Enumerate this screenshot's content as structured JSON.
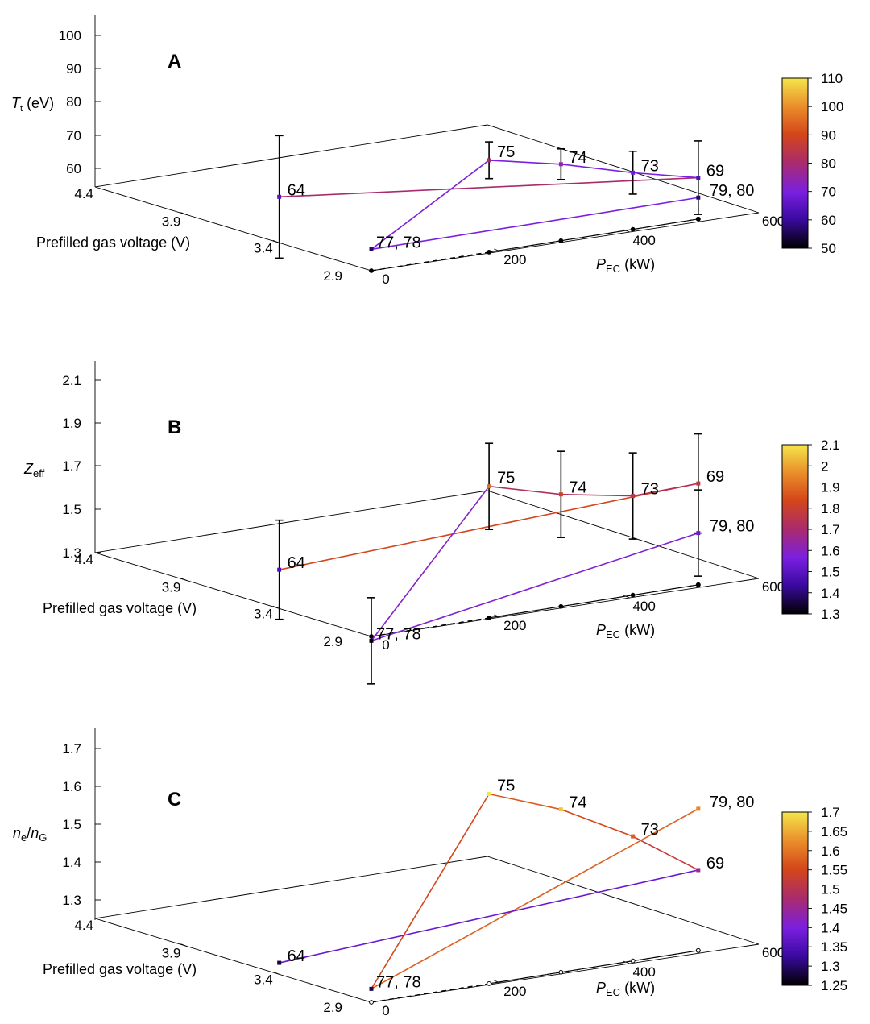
{
  "colormap": {
    "name": "gnuplot-like",
    "stops": [
      "#000000",
      "#3a0aa0",
      "#7a1fe0",
      "#a92b6e",
      "#d4461a",
      "#e98c2a",
      "#f5e54a"
    ]
  },
  "chart_data": [
    {
      "type": "line-3d",
      "panel_label": "A",
      "zlabel": "T_t (eV)",
      "xlabel": "P_EC (kW)",
      "ylabel": "Prefilled gas voltage (V)",
      "z_ticks": [
        "60",
        "70",
        "80",
        "90",
        "100"
      ],
      "y_ticks": [
        "4.4",
        "3.9",
        "3.4",
        "2.9"
      ],
      "x_ticks": [
        "0",
        "200",
        "400",
        "600"
      ],
      "zlim": [
        50,
        100
      ],
      "colorbar_ticks": [
        "50",
        "60",
        "70",
        "80",
        "90",
        "100",
        "110"
      ],
      "colorbar_range": [
        50,
        110
      ],
      "points": [
        {
          "label": "64",
          "x": 0,
          "y": 3.4,
          "z": 65,
          "err": 20
        },
        {
          "label": "75",
          "x": 180,
          "y": 2.9,
          "z": 80,
          "err": 6
        },
        {
          "label": "74",
          "x": 290,
          "y": 2.9,
          "z": 75,
          "err": 5
        },
        {
          "label": "73",
          "x": 400,
          "y": 2.9,
          "z": 68.5,
          "err": 7
        },
        {
          "label": "69",
          "x": 500,
          "y": 2.9,
          "z": 63.5,
          "err": 12
        },
        {
          "label": "77, 78",
          "x": 0,
          "y": 2.9,
          "z": 57
        },
        {
          "label": "79, 80",
          "x": 500,
          "y": 2.9,
          "z": 57
        }
      ],
      "lines": [
        {
          "from": "64",
          "to": "69",
          "color_value": 80
        },
        {
          "from": "77, 78",
          "to": "75",
          "color_value": 70
        },
        {
          "from": "75",
          "to": "74",
          "color_value": 70
        },
        {
          "from": "74",
          "to": "73",
          "color_value": 70
        },
        {
          "from": "73",
          "to": "69",
          "color_value": 70
        },
        {
          "from": "77, 78",
          "to": "79, 80",
          "color_value": 70
        }
      ]
    },
    {
      "type": "line-3d",
      "panel_label": "B",
      "zlabel": "Z_eff",
      "xlabel": "P_EC (kW)",
      "ylabel": "Prefilled gas voltage (V)",
      "z_ticks": [
        "1.3",
        "1.5",
        "1.7",
        "1.9",
        "2.1"
      ],
      "y_ticks": [
        "4.4",
        "3.9",
        "3.4",
        "2.9"
      ],
      "x_ticks": [
        "0",
        "200",
        "400",
        "600"
      ],
      "zlim": [
        1.3,
        2.1
      ],
      "colorbar_ticks": [
        "1.3",
        "1.4",
        "1.5",
        "1.6",
        "1.7",
        "1.8",
        "1.9",
        "2",
        "2.1"
      ],
      "colorbar_range": [
        1.3,
        2.1
      ],
      "points": [
        {
          "label": "64",
          "x": 0,
          "y": 3.4,
          "z": 1.48,
          "err": 0.23
        },
        {
          "label": "75",
          "x": 180,
          "y": 2.9,
          "z": 1.91,
          "err": 0.2
        },
        {
          "label": "74",
          "x": 290,
          "y": 2.9,
          "z": 1.82,
          "err": 0.2
        },
        {
          "label": "73",
          "x": 400,
          "y": 2.9,
          "z": 1.76,
          "err": 0.2
        },
        {
          "label": "69",
          "x": 500,
          "y": 2.9,
          "z": 1.77,
          "err": 0.23
        },
        {
          "label": "77, 78",
          "x": 0,
          "y": 2.9,
          "z": 1.28,
          "err": 0.2
        },
        {
          "label": "79, 80",
          "x": 500,
          "y": 2.9,
          "z": 1.54,
          "err": 0.2
        }
      ],
      "lines": [
        {
          "from": "64",
          "to": "69",
          "color_value": 1.83
        },
        {
          "from": "77, 78",
          "to": "75",
          "color_value": 1.6
        },
        {
          "from": "75",
          "to": "74",
          "color_value": 1.72
        },
        {
          "from": "74",
          "to": "73",
          "color_value": 1.72
        },
        {
          "from": "73",
          "to": "69",
          "color_value": 1.72
        },
        {
          "from": "77, 78",
          "to": "79, 80",
          "color_value": 1.58
        }
      ]
    },
    {
      "type": "line-3d",
      "panel_label": "C",
      "zlabel": "n_e/n_G",
      "xlabel": "P_EC (kW)",
      "ylabel": "Prefilled gas voltage (V)",
      "z_ticks": [
        "1.3",
        "1.4",
        "1.5",
        "1.6",
        "1.7"
      ],
      "y_ticks": [
        "4.4",
        "3.9",
        "3.4",
        "2.9"
      ],
      "x_ticks": [
        "0",
        "200",
        "400",
        "600"
      ],
      "zlim": [
        1.25,
        1.7
      ],
      "colorbar_ticks": [
        "1.25",
        "1.3",
        "1.35",
        "1.4",
        "1.45",
        "1.5",
        "1.55",
        "1.6",
        "1.65",
        "1.7"
      ],
      "colorbar_range": [
        1.25,
        1.7
      ],
      "points": [
        {
          "label": "75",
          "x": 180,
          "y": 2.9,
          "z": 1.745
        },
        {
          "label": "74",
          "x": 290,
          "y": 2.9,
          "z": 1.675
        },
        {
          "label": "73",
          "x": 400,
          "y": 2.9,
          "z": 1.575
        },
        {
          "label": "69",
          "x": 500,
          "y": 2.9,
          "z": 1.46
        },
        {
          "label": "77, 78",
          "x": 0,
          "y": 2.9,
          "z": 1.285
        },
        {
          "label": "79, 80",
          "x": 500,
          "y": 2.9,
          "z": 1.62
        },
        {
          "label": "64",
          "x": 0,
          "y": 3.4,
          "z": 1.28
        }
      ],
      "lines": [
        {
          "from": "77, 78",
          "to": "75",
          "color_value": 1.55
        },
        {
          "from": "75",
          "to": "74",
          "color_value": 1.57
        },
        {
          "from": "74",
          "to": "73",
          "color_value": 1.55
        },
        {
          "from": "73",
          "to": "69",
          "color_value": 1.52
        },
        {
          "from": "77, 78",
          "to": "79, 80",
          "color_value": 1.58
        },
        {
          "from": "64",
          "to": "69",
          "color_value": 1.38
        }
      ]
    }
  ]
}
